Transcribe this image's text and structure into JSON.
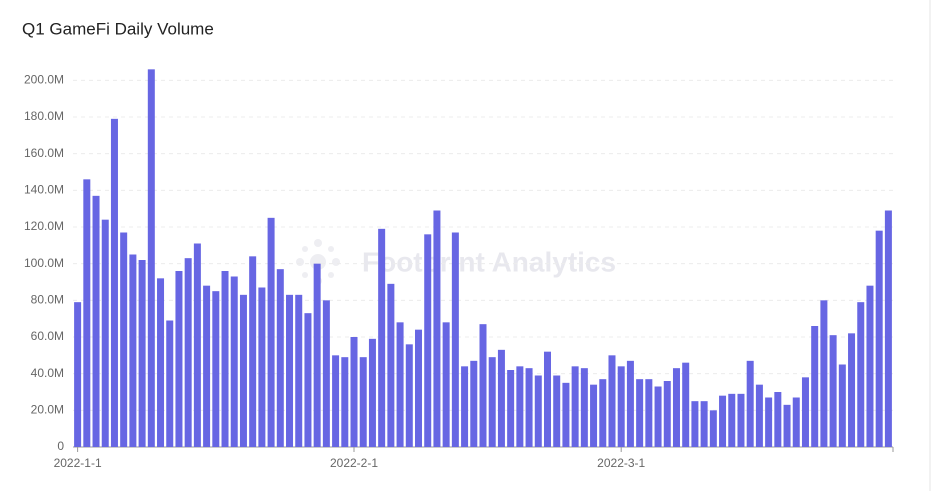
{
  "chart_data": {
    "type": "bar",
    "title": "Q1 GameFi Daily Volume",
    "watermark": "Footprint Analytics",
    "categories": [
      "2022-1-1",
      null,
      null,
      null,
      null,
      null,
      null,
      null,
      null,
      null,
      null,
      null,
      null,
      null,
      null,
      null,
      null,
      null,
      null,
      null,
      null,
      null,
      null,
      null,
      null,
      null,
      null,
      null,
      null,
      null,
      "2022-2-1",
      null,
      null,
      null,
      null,
      null,
      null,
      null,
      null,
      null,
      null,
      null,
      null,
      null,
      null,
      null,
      null,
      null,
      null,
      null,
      null,
      null,
      null,
      null,
      null,
      null,
      null,
      null,
      null,
      "2022-3-1",
      null,
      null,
      null,
      null,
      null,
      null,
      null,
      null,
      null,
      null,
      null,
      null,
      null,
      null,
      null,
      null,
      null,
      null,
      null,
      null,
      null,
      null,
      null,
      null,
      null,
      null,
      null,
      null,
      null
    ],
    "values": [
      79,
      146,
      137,
      124,
      179,
      117,
      105,
      102,
      206,
      92,
      69,
      96,
      103,
      111,
      88,
      85,
      96,
      93,
      83,
      104,
      87,
      125,
      97,
      83,
      83,
      73,
      100,
      80,
      50,
      49,
      60,
      49,
      59,
      119,
      89,
      68,
      56,
      64,
      116,
      129,
      68,
      117,
      44,
      47,
      67,
      49,
      53,
      42,
      44,
      43,
      39,
      52,
      39,
      35,
      44,
      43,
      34,
      37,
      50,
      44,
      47,
      37,
      37,
      33,
      36,
      43,
      46,
      25,
      25,
      20,
      28,
      29,
      29,
      47,
      34,
      27,
      30,
      23,
      27,
      38,
      66,
      80,
      61,
      45,
      62,
      79,
      88,
      118,
      129
    ],
    "color": "#6766e3",
    "ylim": [
      0,
      210
    ],
    "yticks": [
      0,
      {
        "value": 20,
        "label": "20.0M"
      },
      {
        "value": 40,
        "label": "40.0M"
      },
      {
        "value": 60,
        "label": "60.0M"
      },
      {
        "value": 80,
        "label": "80.0M"
      },
      {
        "value": 100,
        "label": "100.0M"
      },
      {
        "value": 120,
        "label": "120.0M"
      },
      {
        "value": 140,
        "label": "140.0M"
      },
      {
        "value": 160,
        "label": "160.0M"
      },
      {
        "value": 180,
        "label": "180.0M"
      },
      {
        "value": 200,
        "label": "200.0M"
      }
    ],
    "grid": true
  }
}
